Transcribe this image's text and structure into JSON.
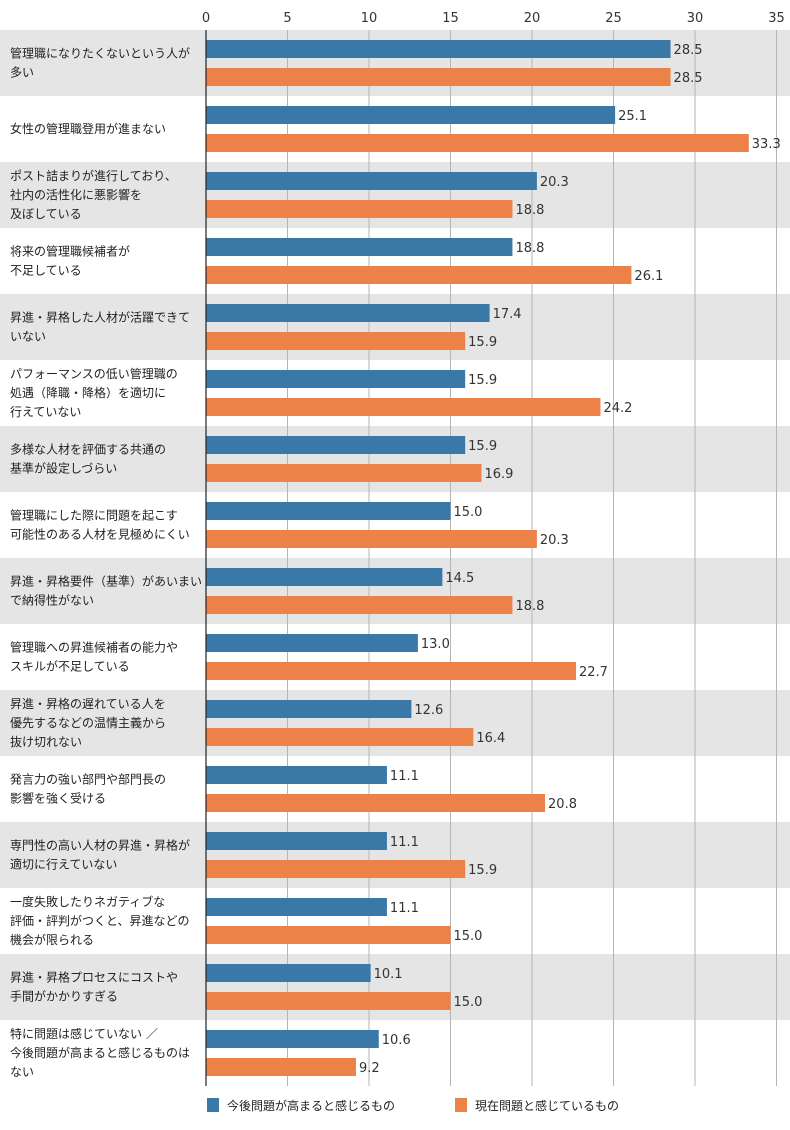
{
  "chart_data": {
    "type": "bar",
    "orientation": "horizontal",
    "xlim": [
      0,
      35
    ],
    "ticks": [
      0,
      5,
      10,
      15,
      20,
      25,
      30,
      35
    ],
    "grid": true,
    "legend_position": "bottom",
    "categories": [
      [
        "管理職になりたくないという人が",
        "多い"
      ],
      [
        "女性の管理職登用が進まない"
      ],
      [
        "ポスト詰まりが進行しており、",
        "社内の活性化に悪影響を",
        "及ぼしている"
      ],
      [
        "将来の管理職候補者が",
        "不足している"
      ],
      [
        "昇進・昇格した人材が活躍できて",
        "いない"
      ],
      [
        "パフォーマンスの低い管理職の",
        "処遇（降職・降格）を適切に",
        "行えていない"
      ],
      [
        "多様な人材を評価する共通の",
        "基準が設定しづらい"
      ],
      [
        "管理職にした際に問題を起こす",
        "可能性のある人材を見極めにくい"
      ],
      [
        "昇進・昇格要件（基準）があいまい",
        "で納得性がない"
      ],
      [
        "管理職への昇進候補者の能力や",
        "スキルが不足している"
      ],
      [
        "昇進・昇格の遅れている人を",
        "優先するなどの温情主義から",
        "抜け切れない"
      ],
      [
        "発言力の強い部門や部門長の",
        "影響を強く受ける"
      ],
      [
        "専門性の高い人材の昇進・昇格が",
        "適切に行えていない"
      ],
      [
        "一度失敗したりネガティブな",
        "評価・評判がつくと、昇進などの",
        "機会が限られる"
      ],
      [
        "昇進・昇格プロセスにコストや",
        "手間がかかりすぎる"
      ],
      [
        "特に問題は感じていない ／",
        "今後問題が高まると感じるものは",
        "ない"
      ]
    ],
    "series": [
      {
        "name": "今後問題が高まると感じるもの",
        "color": "#3a78a8",
        "values": [
          28.5,
          25.1,
          20.3,
          18.8,
          17.4,
          15.9,
          15.9,
          15.0,
          14.5,
          13.0,
          12.6,
          11.1,
          11.1,
          11.1,
          10.1,
          10.6
        ]
      },
      {
        "name": "現在問題と感じているもの",
        "color": "#ec8248",
        "values": [
          28.5,
          33.3,
          18.8,
          26.1,
          15.9,
          24.2,
          16.9,
          20.3,
          18.8,
          22.7,
          16.4,
          20.8,
          15.9,
          15.0,
          15.0,
          9.2
        ]
      }
    ],
    "row_shading": "#e5e5e5"
  }
}
